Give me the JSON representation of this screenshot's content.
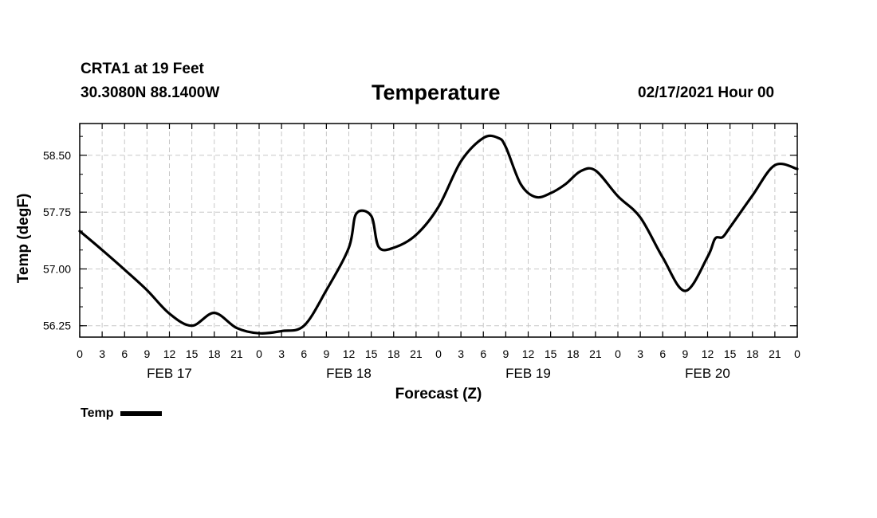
{
  "header": {
    "station": "CRTA1 at 19 Feet",
    "coordinates": "30.3080N 88.1400W",
    "title": "Temperature",
    "datetime": "02/17/2021 Hour 00"
  },
  "chart_data": {
    "type": "line",
    "title": "Temperature",
    "xlabel": "Forecast (Z)",
    "ylabel": "Temp (degF)",
    "x_unit": "forecast hours from 02/17/2021 00Z",
    "xlim": [
      0,
      96
    ],
    "ylim": [
      56.1,
      58.92
    ],
    "yticks": [
      56.25,
      57.0,
      57.75,
      58.5
    ],
    "ytick_labels": [
      "56.25",
      "57.00",
      "57.75",
      "58.50"
    ],
    "xticks": [
      0,
      3,
      6,
      9,
      12,
      15,
      18,
      21,
      24,
      27,
      30,
      33,
      36,
      39,
      42,
      45,
      48,
      51,
      54,
      57,
      60,
      63,
      66,
      69,
      72,
      75,
      78,
      81,
      84,
      87,
      90,
      93,
      96
    ],
    "xtick_labels": [
      "0",
      "3",
      "6",
      "9",
      "12",
      "15",
      "18",
      "21",
      "0",
      "3",
      "6",
      "9",
      "12",
      "15",
      "18",
      "21",
      "0",
      "3",
      "6",
      "9",
      "12",
      "15",
      "18",
      "21",
      "0",
      "3",
      "6",
      "9",
      "12",
      "15",
      "18",
      "21",
      "0"
    ],
    "date_labels": [
      {
        "hour": 12,
        "label": "FEB 17"
      },
      {
        "hour": 36,
        "label": "FEB 18"
      },
      {
        "hour": 60,
        "label": "FEB 19"
      },
      {
        "hour": 84,
        "label": "FEB 20"
      }
    ],
    "grid": true,
    "legend": {
      "position": "bottom-left",
      "entries": [
        "Temp"
      ]
    },
    "series": [
      {
        "name": "Temp",
        "x": [
          0,
          3,
          6,
          9,
          12,
          15,
          18,
          21,
          24,
          27,
          30,
          33,
          36,
          37,
          39,
          40,
          42,
          45,
          48,
          51,
          54,
          56,
          57,
          59,
          61,
          63,
          65,
          67,
          69,
          72,
          75,
          78,
          81,
          84,
          85,
          86,
          87,
          90,
          93,
          96
        ],
        "y": [
          57.5,
          57.25,
          56.99,
          56.72,
          56.41,
          56.25,
          56.42,
          56.22,
          56.15,
          56.18,
          56.25,
          56.72,
          57.28,
          57.73,
          57.7,
          57.29,
          57.28,
          57.45,
          57.82,
          58.42,
          58.73,
          58.73,
          58.61,
          58.12,
          57.95,
          58.0,
          58.12,
          58.29,
          58.3,
          57.96,
          57.68,
          57.15,
          56.71,
          57.16,
          57.4,
          57.42,
          57.55,
          57.97,
          58.37,
          58.32
        ]
      }
    ]
  },
  "legend_label": "Temp"
}
